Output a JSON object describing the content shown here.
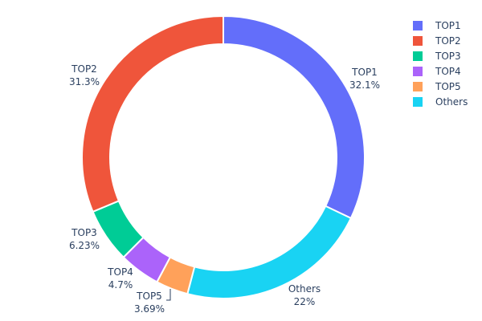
{
  "chart_data": {
    "type": "pie",
    "hole": true,
    "title": "",
    "slices": [
      {
        "name": "TOP1",
        "value": 32.1,
        "label": "32.1%",
        "color": "#636efa"
      },
      {
        "name": "Others",
        "value": 22,
        "label": "22%",
        "color": "#19d3f3"
      },
      {
        "name": "TOP5",
        "value": 3.69,
        "label": "3.69%",
        "color": "#ffa15a"
      },
      {
        "name": "TOP4",
        "value": 4.7,
        "label": "4.7%",
        "color": "#ab63fa"
      },
      {
        "name": "TOP3",
        "value": 6.23,
        "label": "6.23%",
        "color": "#00cc96"
      },
      {
        "name": "TOP2",
        "value": 31.3,
        "label": "31.3%",
        "color": "#ef553b"
      }
    ],
    "legend": [
      {
        "name": "TOP1",
        "color": "#636efa"
      },
      {
        "name": "TOP2",
        "color": "#ef553b"
      },
      {
        "name": "TOP3",
        "color": "#00cc96"
      },
      {
        "name": "TOP4",
        "color": "#ab63fa"
      },
      {
        "name": "TOP5",
        "color": "#ffa15a"
      },
      {
        "name": "Others",
        "color": "#19d3f3"
      }
    ],
    "legend_position": "top-right"
  }
}
